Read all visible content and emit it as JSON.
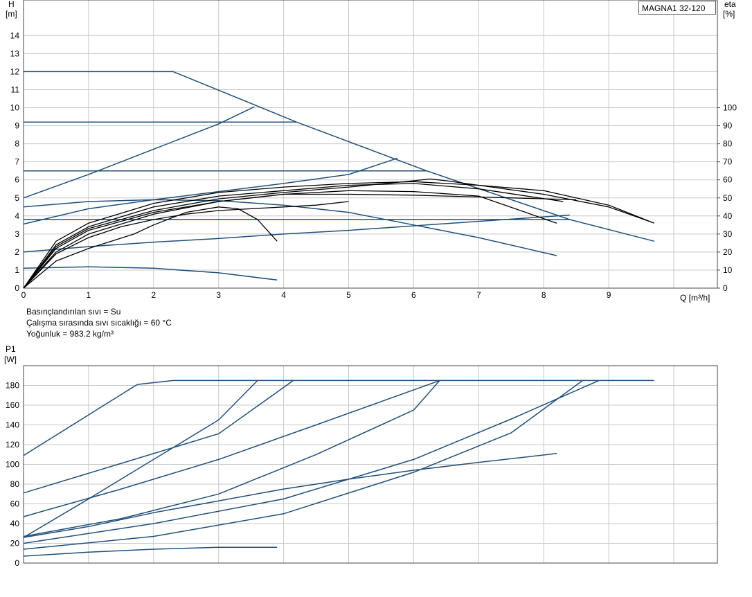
{
  "model": "MAGNA1 32-120",
  "fluid_info": [
    "Basınçlandırılan sıvı = Su",
    "Çalışma sırasında sıvı sıcaklığı = 60 °C",
    "Yoğunluk = 983.2 kg/m³"
  ],
  "colors": {
    "curve": "#1f4e79",
    "eta": "#000000",
    "grid": "#c8c8c8"
  },
  "chart_data": [
    {
      "type": "line",
      "id": "head",
      "y_label_top": "H",
      "y_unit": "[m]",
      "y2_label_top": "eta",
      "y2_unit": "[%]",
      "xlabel": "Q [m³/h]",
      "xlim": [
        0,
        10.5
      ],
      "ylim": [
        0,
        16
      ],
      "y2lim": [
        0,
        160
      ],
      "x_ticks": [
        0,
        1,
        2,
        3,
        4,
        5,
        6,
        7,
        8,
        9
      ],
      "y_ticks": [
        0,
        1,
        2,
        3,
        4,
        5,
        6,
        7,
        8,
        9,
        10,
        11,
        12,
        13,
        14
      ],
      "y2_ticks": [
        0,
        10,
        20,
        30,
        40,
        50,
        60,
        70,
        80,
        90,
        100
      ],
      "grid": true,
      "series": [
        {
          "axis": "H",
          "points": [
            [
              0,
              12
            ],
            [
              2.3,
              12
            ],
            [
              4.2,
              9.2
            ],
            [
              6.2,
              6.5
            ],
            [
              8.4,
              3.8
            ],
            [
              9.7,
              2.6
            ]
          ]
        },
        {
          "axis": "H",
          "points": [
            [
              0,
              9.2
            ],
            [
              4.2,
              9.2
            ]
          ]
        },
        {
          "axis": "H",
          "points": [
            [
              0,
              6.5
            ],
            [
              6.2,
              6.5
            ]
          ]
        },
        {
          "axis": "H",
          "points": [
            [
              0,
              3.8
            ],
            [
              8.4,
              3.8
            ]
          ]
        },
        {
          "axis": "H",
          "points": [
            [
              0,
              5
            ],
            [
              1,
              6.3
            ],
            [
              2,
              7.7
            ],
            [
              3,
              9.1
            ],
            [
              3.55,
              10.05
            ]
          ]
        },
        {
          "axis": "H",
          "points": [
            [
              0,
              3.55
            ],
            [
              1,
              4.4
            ],
            [
              2,
              4.9
            ],
            [
              3,
              5.35
            ],
            [
              4,
              5.8
            ],
            [
              5,
              6.3
            ],
            [
              5.75,
              7.2
            ]
          ]
        },
        {
          "axis": "H",
          "points": [
            [
              0,
              2
            ],
            [
              1,
              2.3
            ],
            [
              2,
              2.55
            ],
            [
              3,
              2.75
            ],
            [
              4,
              3.0
            ],
            [
              5,
              3.2
            ],
            [
              6,
              3.45
            ],
            [
              7,
              3.7
            ],
            [
              8,
              3.95
            ],
            [
              8.4,
              4.05
            ]
          ]
        },
        {
          "axis": "H",
          "points": [
            [
              0,
              4.5
            ],
            [
              1,
              4.8
            ],
            [
              2,
              4.9
            ],
            [
              3,
              4.85
            ],
            [
              4,
              4.6
            ],
            [
              5,
              4.2
            ],
            [
              6,
              3.5
            ],
            [
              7,
              2.8
            ],
            [
              8.2,
              1.8
            ]
          ]
        },
        {
          "axis": "H",
          "points": [
            [
              0,
              1.1
            ],
            [
              1,
              1.18
            ],
            [
              2,
              1.1
            ],
            [
              3,
              0.85
            ],
            [
              3.9,
              0.45
            ]
          ]
        },
        {
          "axis": "eta",
          "points": [
            [
              0,
              0
            ],
            [
              0.5,
              19
            ],
            [
              1,
              28
            ],
            [
              1.5,
              34
            ],
            [
              2,
              38
            ],
            [
              2.5,
              41
            ],
            [
              3,
              43
            ],
            [
              3.5,
              44
            ],
            [
              4,
              45
            ],
            [
              4.5,
              46
            ],
            [
              5,
              48
            ]
          ]
        },
        {
          "axis": "eta",
          "points": [
            [
              0,
              0
            ],
            [
              0.5,
              15
            ],
            [
              1,
              22
            ],
            [
              1.7,
              30
            ],
            [
              2,
              35
            ],
            [
              2.5,
              42
            ],
            [
              3,
              45
            ],
            [
              3.3,
              44
            ],
            [
              3.6,
              38
            ],
            [
              3.9,
              26
            ]
          ]
        },
        {
          "axis": "eta",
          "points": [
            [
              0,
              0
            ],
            [
              0.5,
              22
            ],
            [
              1,
              32
            ],
            [
              2,
              42
            ],
            [
              3,
              48
            ],
            [
              4,
              52
            ],
            [
              5,
              54
            ],
            [
              6,
              53.5
            ],
            [
              7,
              51
            ],
            [
              8.2,
              36
            ]
          ]
        },
        {
          "axis": "eta",
          "points": [
            [
              0,
              0
            ],
            [
              0.5,
              24
            ],
            [
              1,
              34
            ],
            [
              2,
              45
            ],
            [
              3,
              51
            ],
            [
              4,
              54
            ],
            [
              5,
              57
            ],
            [
              6,
              58
            ],
            [
              7,
              55
            ],
            [
              8.3,
              48
            ]
          ]
        },
        {
          "axis": "eta",
          "points": [
            [
              0,
              0
            ],
            [
              0.5,
              26
            ],
            [
              1,
              36
            ],
            [
              2,
              47
            ],
            [
              3,
              53
            ],
            [
              4,
              56
            ],
            [
              5,
              58
            ],
            [
              6,
              59
            ],
            [
              7,
              57
            ],
            [
              8,
              52
            ],
            [
              9,
              45
            ],
            [
              9.7,
              36
            ]
          ]
        },
        {
          "axis": "eta",
          "points": [
            [
              0,
              0
            ],
            [
              0.5,
              20
            ],
            [
              1,
              30
            ],
            [
              2,
              41
            ],
            [
              3,
              48
            ],
            [
              4,
              52
            ],
            [
              5,
              52
            ],
            [
              6,
              51.5
            ],
            [
              7,
              50.5
            ],
            [
              8.5,
              49
            ]
          ]
        },
        {
          "axis": "eta",
          "points": [
            [
              0,
              0
            ],
            [
              0.5,
              23
            ],
            [
              1,
              33
            ],
            [
              2,
              43
            ],
            [
              3,
              49.5
            ],
            [
              4,
              53
            ],
            [
              5,
              56
            ],
            [
              6,
              59.5
            ],
            [
              6.25,
              60.5
            ],
            [
              6.5,
              59.5
            ],
            [
              7,
              57
            ],
            [
              8,
              54
            ],
            [
              9,
              46
            ],
            [
              9.7,
              36
            ]
          ]
        }
      ]
    },
    {
      "type": "line",
      "id": "power",
      "y_label_top": "P1",
      "y_unit": "[W]",
      "xlim": [
        0,
        10.5
      ],
      "ylim": [
        0,
        200
      ],
      "y_ticks": [
        0,
        20,
        40,
        60,
        80,
        100,
        120,
        140,
        160,
        180
      ],
      "grid": true,
      "series": [
        {
          "points": [
            [
              0,
              109
            ],
            [
              1.75,
              181
            ],
            [
              2.3,
              185
            ],
            [
              9.7,
              185
            ]
          ]
        },
        {
          "points": [
            [
              0,
              71
            ],
            [
              1.5,
              101
            ],
            [
              3,
              131
            ],
            [
              4.15,
              185
            ]
          ]
        },
        {
          "points": [
            [
              0,
              47
            ],
            [
              1.5,
              75
            ],
            [
              3,
              105
            ],
            [
              4.5,
              140
            ],
            [
              6.4,
              185
            ]
          ]
        },
        {
          "points": [
            [
              0,
              27
            ],
            [
              1.5,
              45
            ],
            [
              3,
              70
            ],
            [
              4.5,
              110
            ],
            [
              6,
              155
            ],
            [
              6.4,
              185
            ]
          ]
        },
        {
          "points": [
            [
              0,
              20
            ],
            [
              2,
              40
            ],
            [
              4,
              65
            ],
            [
              6,
              105
            ],
            [
              7.5,
              146
            ],
            [
              8.85,
              185
            ]
          ]
        },
        {
          "points": [
            [
              0,
              14
            ],
            [
              2,
              27
            ],
            [
              4,
              50
            ],
            [
              6,
              92
            ],
            [
              7.5,
              132
            ],
            [
              8.6,
              185
            ]
          ]
        },
        {
          "points": [
            [
              0,
              26
            ],
            [
              1,
              65
            ],
            [
              2,
              105
            ],
            [
              3,
              145
            ],
            [
              3.6,
              185
            ]
          ]
        },
        {
          "points": [
            [
              0,
              26
            ],
            [
              1,
              37
            ],
            [
              2,
              51
            ],
            [
              3,
              63
            ],
            [
              4,
              75
            ],
            [
              5,
              85
            ],
            [
              6,
              94
            ],
            [
              7,
              102
            ],
            [
              8.2,
              111
            ]
          ]
        },
        {
          "points": [
            [
              0,
              7
            ],
            [
              1,
              11
            ],
            [
              2,
              14
            ],
            [
              3,
              16
            ],
            [
              3.9,
              16
            ]
          ]
        }
      ]
    }
  ]
}
